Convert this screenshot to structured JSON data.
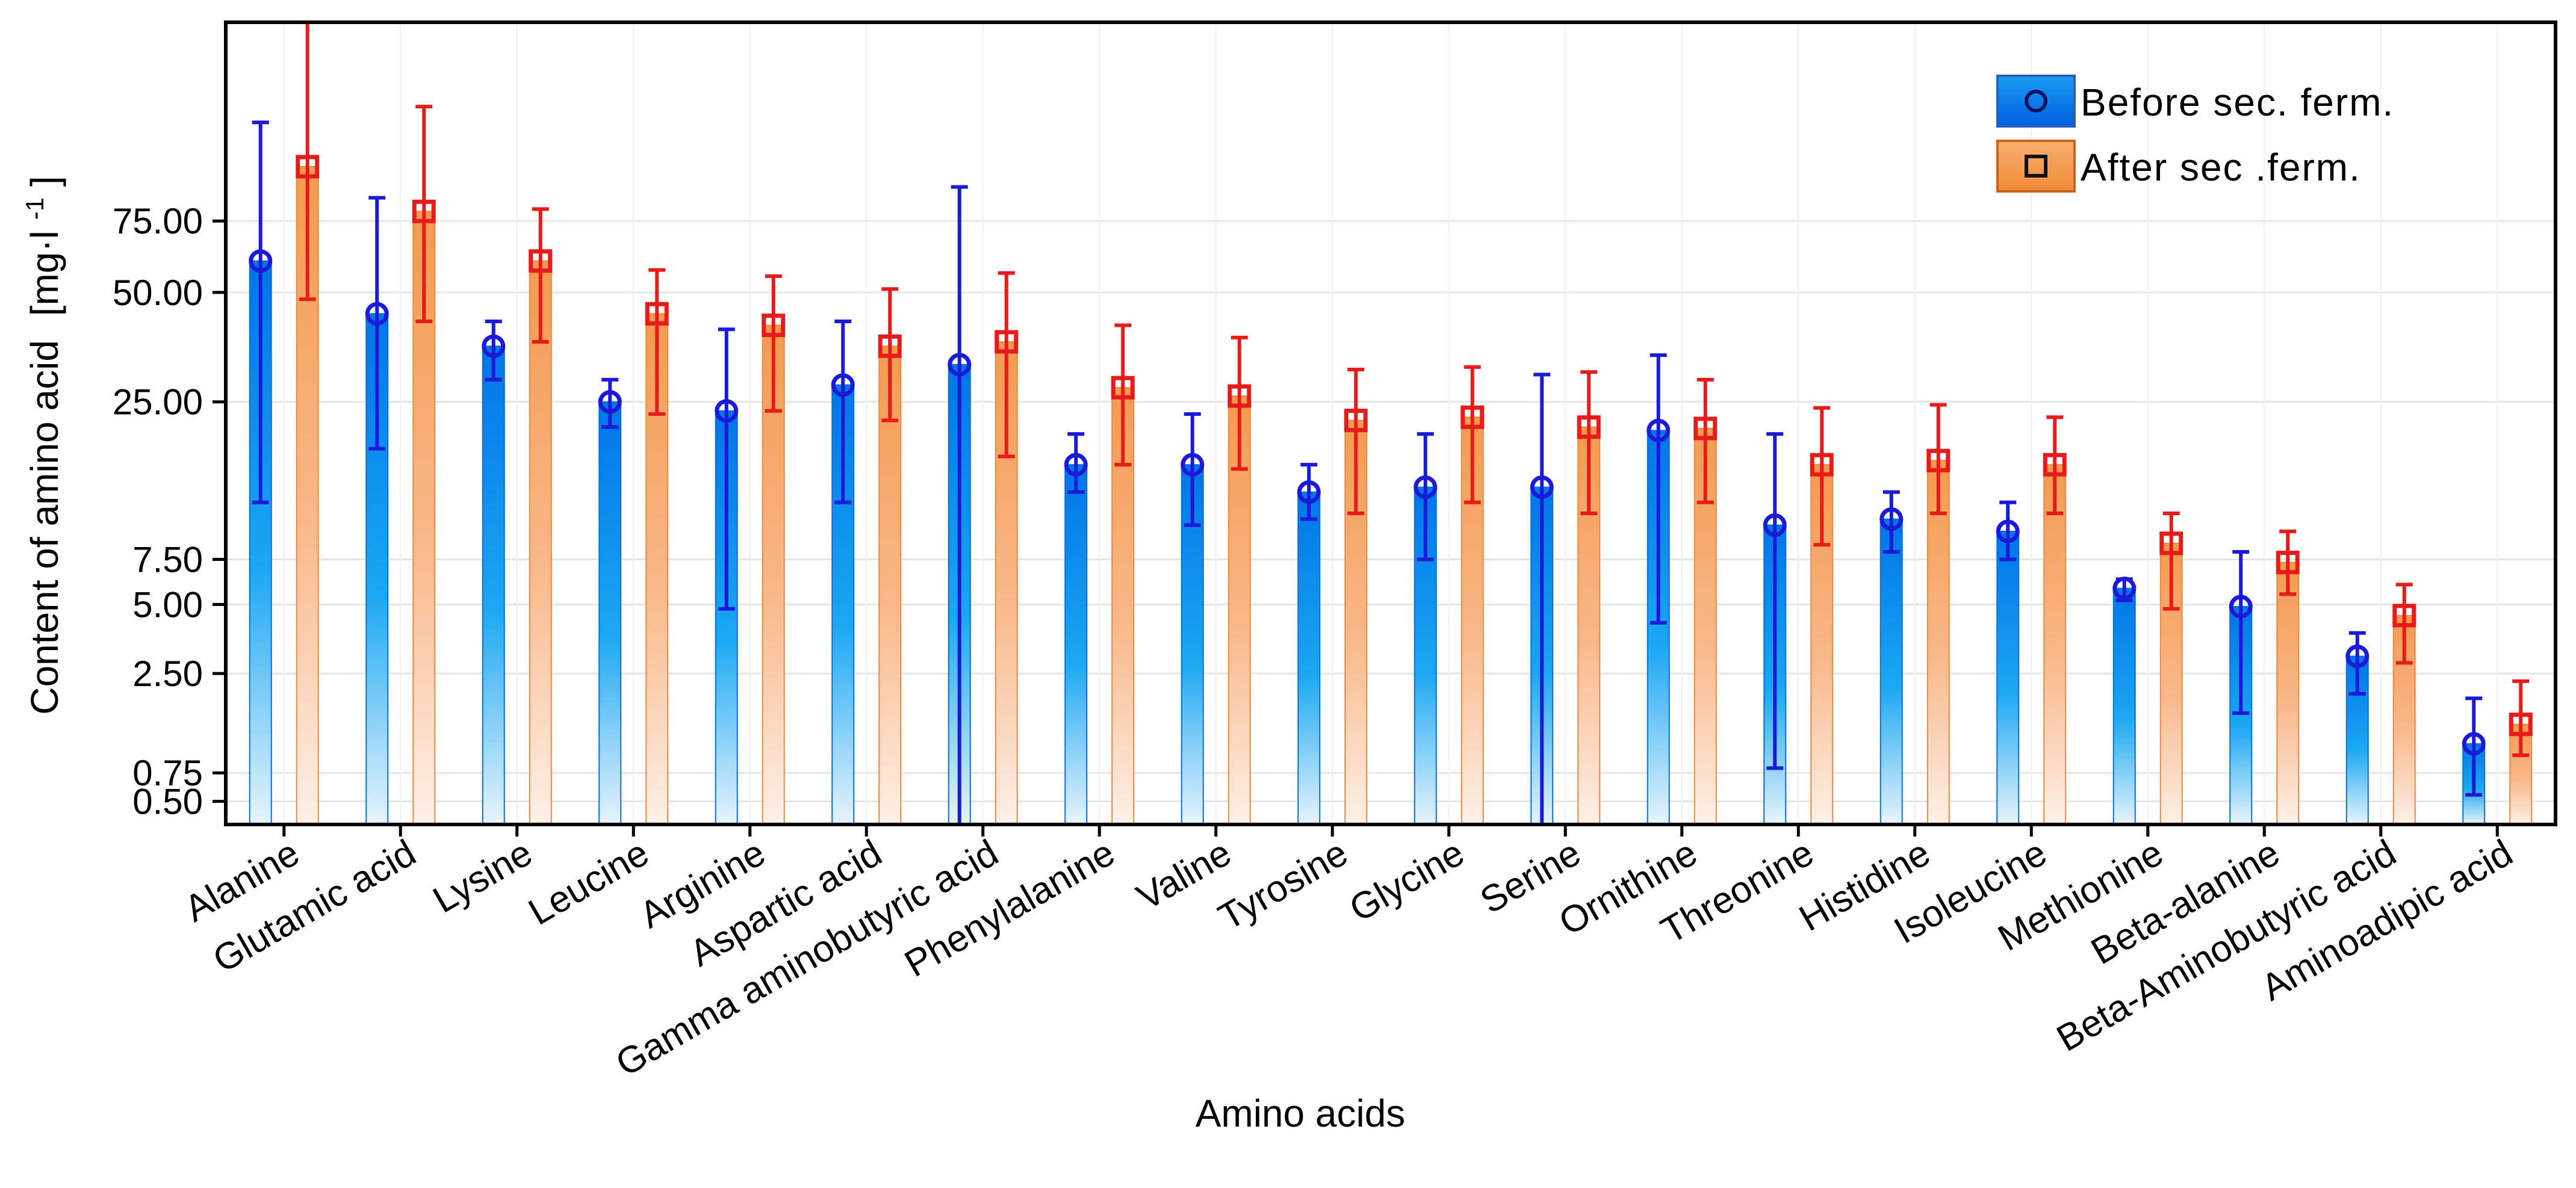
{
  "chart_data": {
    "type": "bar",
    "title": "",
    "xlabel": "Amino acids",
    "ylabel": "Content of amino acid",
    "ylabel_unit_base": "[mg·l",
    "ylabel_unit_sup": "-1",
    "ylabel_unit_close": "]",
    "y_scale": "logarithmic-like",
    "ylim": [
      0.35,
      200
    ],
    "yticks": [
      0.5,
      0.75,
      2.5,
      5.0,
      7.5,
      25.0,
      50.0,
      75.0
    ],
    "ytick_labels": [
      "0.50",
      "0.75",
      "2.50",
      "5.00",
      "7.50",
      "25.00",
      "50.00",
      "75.00"
    ],
    "grid": true,
    "legend_position": "top-right",
    "categories": [
      "Alanine",
      "Glutamic acid",
      "Lysine",
      "Leucine",
      "Arginine",
      "Aspartic acid",
      "Gamma aminobutyric acid",
      "Phenylalanine",
      "Valine",
      "Tyrosine",
      "Glycine",
      "Serine",
      "Ornithine",
      "Threonine",
      "Histidine",
      "Isoleucine",
      "Methionine",
      "Beta-alanine",
      "Beta-Aminobutyric acid",
      "Aminoadipic acid"
    ],
    "series": [
      {
        "name": "Before sec. ferm.",
        "marker": "circle",
        "color": "#0080f0",
        "error_color": "#1a1ad8",
        "values": [
          60,
          44,
          36,
          25,
          23.5,
          28,
          32,
          16,
          16,
          13,
          13.5,
          13.5,
          20.5,
          10,
          10.5,
          9.5,
          5.8,
          4.9,
          3.0,
          1.1
        ],
        "err_low": [
          12,
          18,
          29,
          21,
          4.8,
          12,
          0.3,
          13,
          10,
          10.5,
          7.5,
          0.35,
          4.2,
          0.8,
          8,
          7.5,
          5.2,
          1.6,
          2.0,
          0.55
        ],
        "err_high": [
          125,
          85,
          42,
          29,
          40,
          42,
          90,
          20,
          23,
          16,
          20,
          30,
          34,
          20,
          13,
          12,
          6.3,
          8.0,
          3.8,
          1.9
        ]
      },
      {
        "name": "After sec .ferm.",
        "marker": "square",
        "color": "#f7a25a",
        "error_color": "#e81b1b",
        "values": [
          100,
          79,
          60,
          44,
          41,
          36,
          37,
          27.5,
          26,
          22,
          22.5,
          21,
          20.8,
          16,
          16.5,
          16,
          8.6,
          7.3,
          4.5,
          1.4
        ],
        "err_low": [
          48,
          42,
          37,
          23,
          23.5,
          22,
          17,
          16,
          15.5,
          11,
          12,
          11,
          12,
          8.5,
          11,
          11,
          4.8,
          5.5,
          2.8,
          0.95
        ],
        "err_high": [
          200,
          135,
          80,
          57,
          55,
          51,
          56,
          41,
          38,
          31,
          31.5,
          30.5,
          29,
          24,
          24.5,
          22.5,
          11,
          9.5,
          6.0,
          2.3
        ]
      }
    ]
  }
}
